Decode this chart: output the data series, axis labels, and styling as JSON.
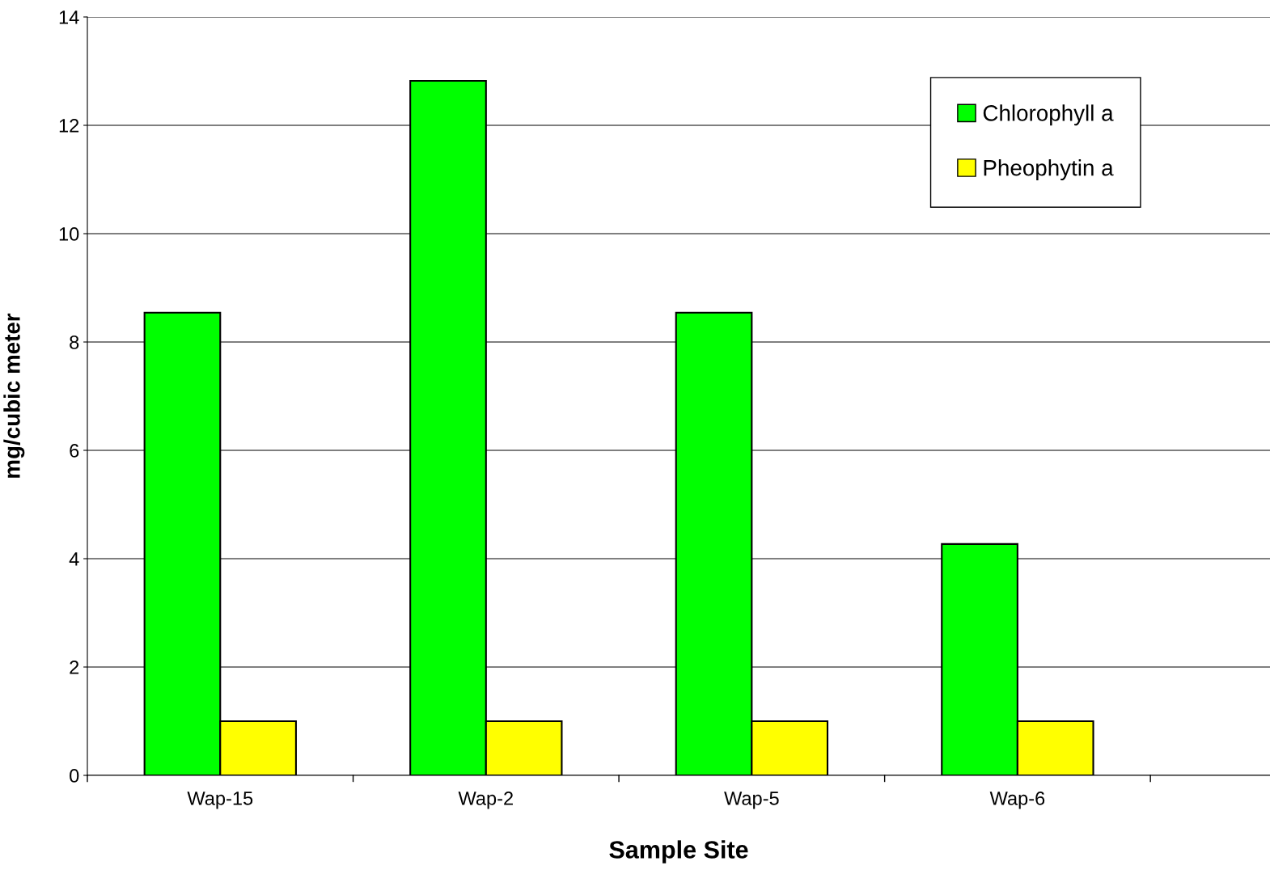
{
  "chart_data": {
    "type": "bar",
    "xlabel": "Sample Site",
    "ylabel": "mg/cubic meter",
    "categories": [
      "Wap-15",
      "Wap-2",
      "Wap-5",
      "Wap-6"
    ],
    "series": [
      {
        "name": "Chlorophyll a",
        "color": "#00ff00",
        "values": [
          8.54,
          12.82,
          8.54,
          4.27
        ]
      },
      {
        "name": "Pheophytin a",
        "color": "#ffff00",
        "values": [
          1.0,
          1.0,
          1.0,
          1.0
        ]
      }
    ],
    "ylim": [
      0,
      14
    ],
    "yticks": [
      0,
      2,
      4,
      6,
      8,
      10,
      12,
      14
    ],
    "grid": "y",
    "legend": "top right"
  }
}
